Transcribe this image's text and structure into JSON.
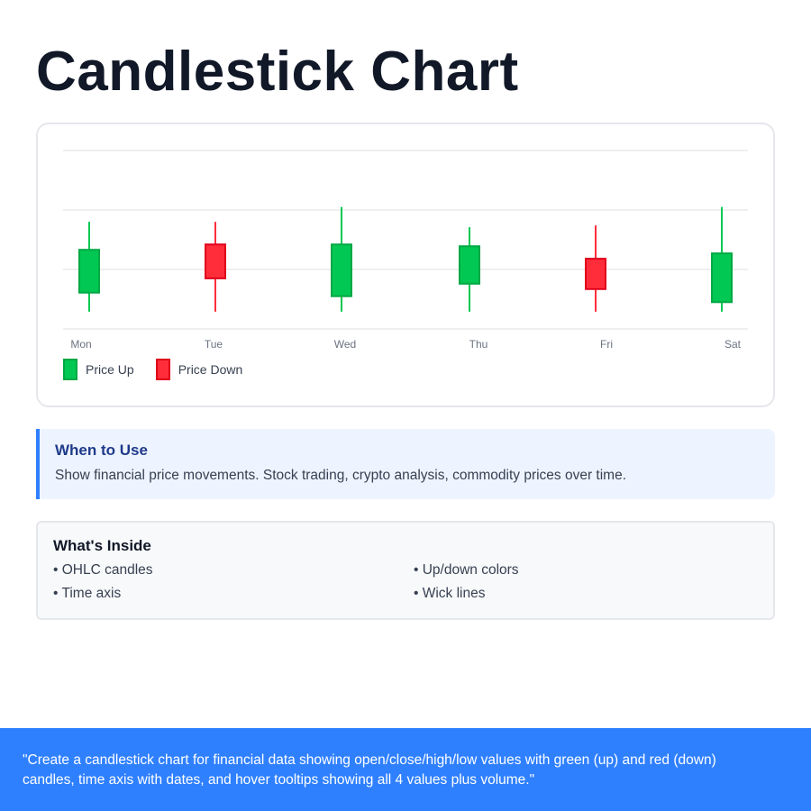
{
  "title": "Candlestick Chart",
  "chart_data": {
    "type": "candlestick",
    "title": "",
    "xlabel": "",
    "ylabel": "",
    "ylim": [
      0,
      300
    ],
    "grid": true,
    "gridlines": [
      0,
      100,
      200,
      300
    ],
    "categories": [
      "Mon",
      "Tue",
      "Wed",
      "Thu",
      "Fri",
      "Sat"
    ],
    "series": [
      {
        "name": "OHLC",
        "values": [
          {
            "day": "Mon",
            "open": 61,
            "high": 180,
            "low": 29,
            "close": 133
          },
          {
            "day": "Tue",
            "open": 142,
            "high": 180,
            "low": 29,
            "close": 85
          },
          {
            "day": "Wed",
            "open": 55,
            "high": 205,
            "low": 29,
            "close": 142
          },
          {
            "day": "Thu",
            "open": 76,
            "high": 171,
            "low": 29,
            "close": 139
          },
          {
            "day": "Fri",
            "open": 118,
            "high": 174,
            "low": 29,
            "close": 67
          },
          {
            "day": "Sat",
            "open": 45,
            "high": 205,
            "low": 29,
            "close": 127
          }
        ]
      }
    ],
    "legend": [
      {
        "label": "Price Up",
        "color": "#00c853",
        "border": "#00a844"
      },
      {
        "label": "Price Down",
        "color": "#ff2d3a",
        "border": "#e0001b"
      }
    ],
    "legend_position": "bottom-left"
  },
  "colors": {
    "up_fill": "#00c853",
    "up_stroke": "#00a844",
    "down_fill": "#ff2d3a",
    "down_stroke": "#e0001b",
    "accent": "#2f80ff"
  },
  "when_to_use": {
    "heading": "When to Use",
    "text": "Show financial price movements. Stock trading, crypto analysis, commodity prices over time."
  },
  "whats_inside": {
    "heading": "What's Inside",
    "items": [
      "• OHLC candles",
      "• Up/down colors",
      "• Time axis",
      "• Wick lines"
    ]
  },
  "footer": {
    "prompt": "\"Create a candlestick chart for financial data showing open/close/high/low values with green (up) and red (down) candles, time axis with dates, and hover tooltips showing all 4 values plus volume.\""
  }
}
